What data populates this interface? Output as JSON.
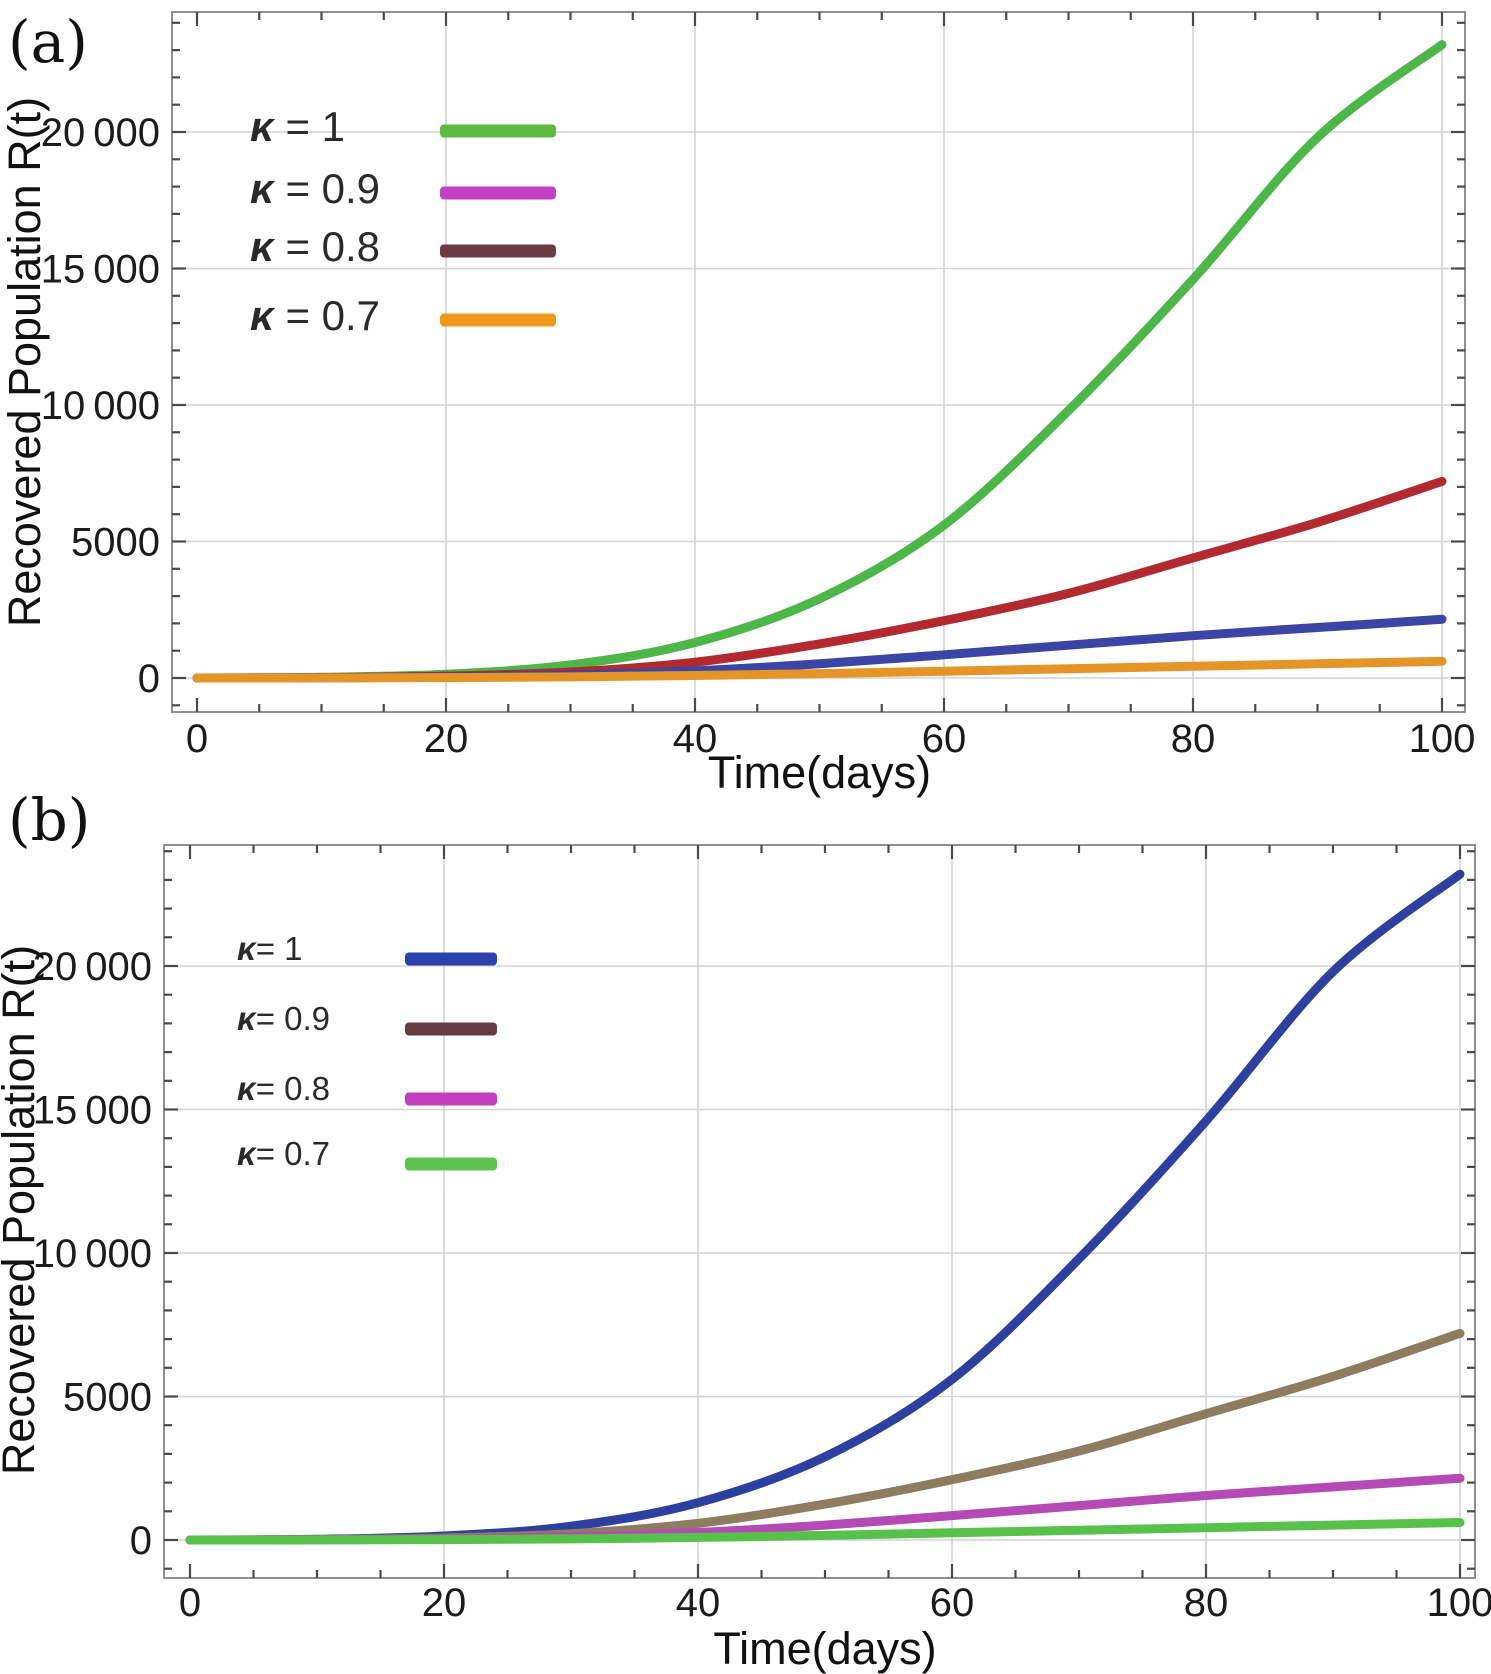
{
  "figure_title": "",
  "chart_data": [
    {
      "type": "line",
      "panel_label": "(a)",
      "xlabel": "Time(days)",
      "ylabel": "Recovered Population R(t)",
      "x_ticks": [
        0,
        20,
        40,
        60,
        80,
        100
      ],
      "x_tick_labels": [
        "0",
        "20",
        "40",
        "60",
        "80",
        "100"
      ],
      "x_minor_step": 5,
      "y_ticks": [
        0,
        5000,
        10000,
        15000,
        20000
      ],
      "y_tick_labels": [
        "0",
        "5000",
        "10 000",
        "15 000",
        "20 000"
      ],
      "y_minor_step": 1000,
      "xlim": [
        -2,
        101.5
      ],
      "ylim": [
        -1250,
        24400
      ],
      "grid": true,
      "legend_position": "upper-left-inside",
      "x": [
        0,
        10,
        20,
        30,
        40,
        50,
        60,
        70,
        80,
        90,
        100
      ],
      "series": [
        {
          "key": "kappa-1",
          "name": "κ = 1",
          "curve_color": "#4cb648",
          "legend_color": "#5cba3f",
          "values": [
            0,
            25,
            140,
            480,
            1300,
            2900,
            5600,
            9800,
            14600,
            19800,
            23200
          ]
        },
        {
          "key": "kappa-0-9",
          "name": "κ = 0.9",
          "curve_color": "#b2292f",
          "legend_color": "#c33fc3",
          "values": [
            0,
            15,
            70,
            220,
            580,
            1250,
            2100,
            3100,
            4400,
            5700,
            7200
          ]
        },
        {
          "key": "kappa-0-8",
          "name": "κ = 0.8",
          "curve_color": "#3a45a5",
          "legend_color": "#6b3a43",
          "values": [
            0,
            8,
            35,
            110,
            260,
            520,
            850,
            1200,
            1550,
            1850,
            2150
          ]
        },
        {
          "key": "kappa-0-7",
          "name": "κ = 0.7",
          "curve_color": "#e59428",
          "legend_color": "#f0991f",
          "values": [
            0,
            4,
            15,
            40,
            90,
            160,
            250,
            340,
            430,
            520,
            610
          ]
        }
      ],
      "colors": {
        "grid": "#d4d4d4",
        "frame": "#909090",
        "tick": "#4a4a4a",
        "text": "#1b1b1b"
      }
    },
    {
      "type": "line",
      "panel_label": "(b)",
      "xlabel": "Time(days)",
      "ylabel": "Recovered Population R(t)",
      "x_ticks": [
        0,
        20,
        40,
        60,
        80,
        100
      ],
      "x_tick_labels": [
        "0",
        "20",
        "40",
        "60",
        "80",
        "100"
      ],
      "x_minor_step": 5,
      "y_ticks": [
        0,
        5000,
        10000,
        15000,
        20000
      ],
      "y_tick_labels": [
        "0",
        "5000",
        "10 000",
        "15 000",
        "20 000"
      ],
      "y_minor_step": 1000,
      "xlim": [
        -2,
        101.5
      ],
      "ylim": [
        -1330,
        24300
      ],
      "grid": true,
      "legend_position": "upper-left-inside",
      "x": [
        0,
        10,
        20,
        30,
        40,
        50,
        60,
        70,
        80,
        90,
        100
      ],
      "series": [
        {
          "key": "kappa-1",
          "name": "κ= 1",
          "curve_color": "#2d3f9f",
          "legend_color": "#2b41ad",
          "values": [
            0,
            25,
            140,
            480,
            1300,
            2900,
            5600,
            9800,
            14600,
            19800,
            23200
          ]
        },
        {
          "key": "kappa-0-9",
          "name": "κ= 0.9",
          "curve_color": "#8d7c5f",
          "legend_color": "#653a40",
          "values": [
            0,
            15,
            70,
            220,
            580,
            1250,
            2100,
            3100,
            4400,
            5700,
            7200
          ]
        },
        {
          "key": "kappa-0-8",
          "name": "κ= 0.8",
          "curve_color": "#b44ab4",
          "legend_color": "#c13fbe",
          "values": [
            0,
            8,
            35,
            110,
            260,
            520,
            850,
            1200,
            1550,
            1850,
            2150
          ]
        },
        {
          "key": "kappa-0-7",
          "name": "κ= 0.7",
          "curve_color": "#57c14b",
          "legend_color": "#5cc44e",
          "values": [
            0,
            4,
            15,
            40,
            90,
            160,
            250,
            340,
            430,
            520,
            610
          ]
        }
      ],
      "colors": {
        "grid": "#d4d4d4",
        "frame": "#909090",
        "tick": "#4a4a4a",
        "text": "#1b1b1b"
      }
    }
  ]
}
